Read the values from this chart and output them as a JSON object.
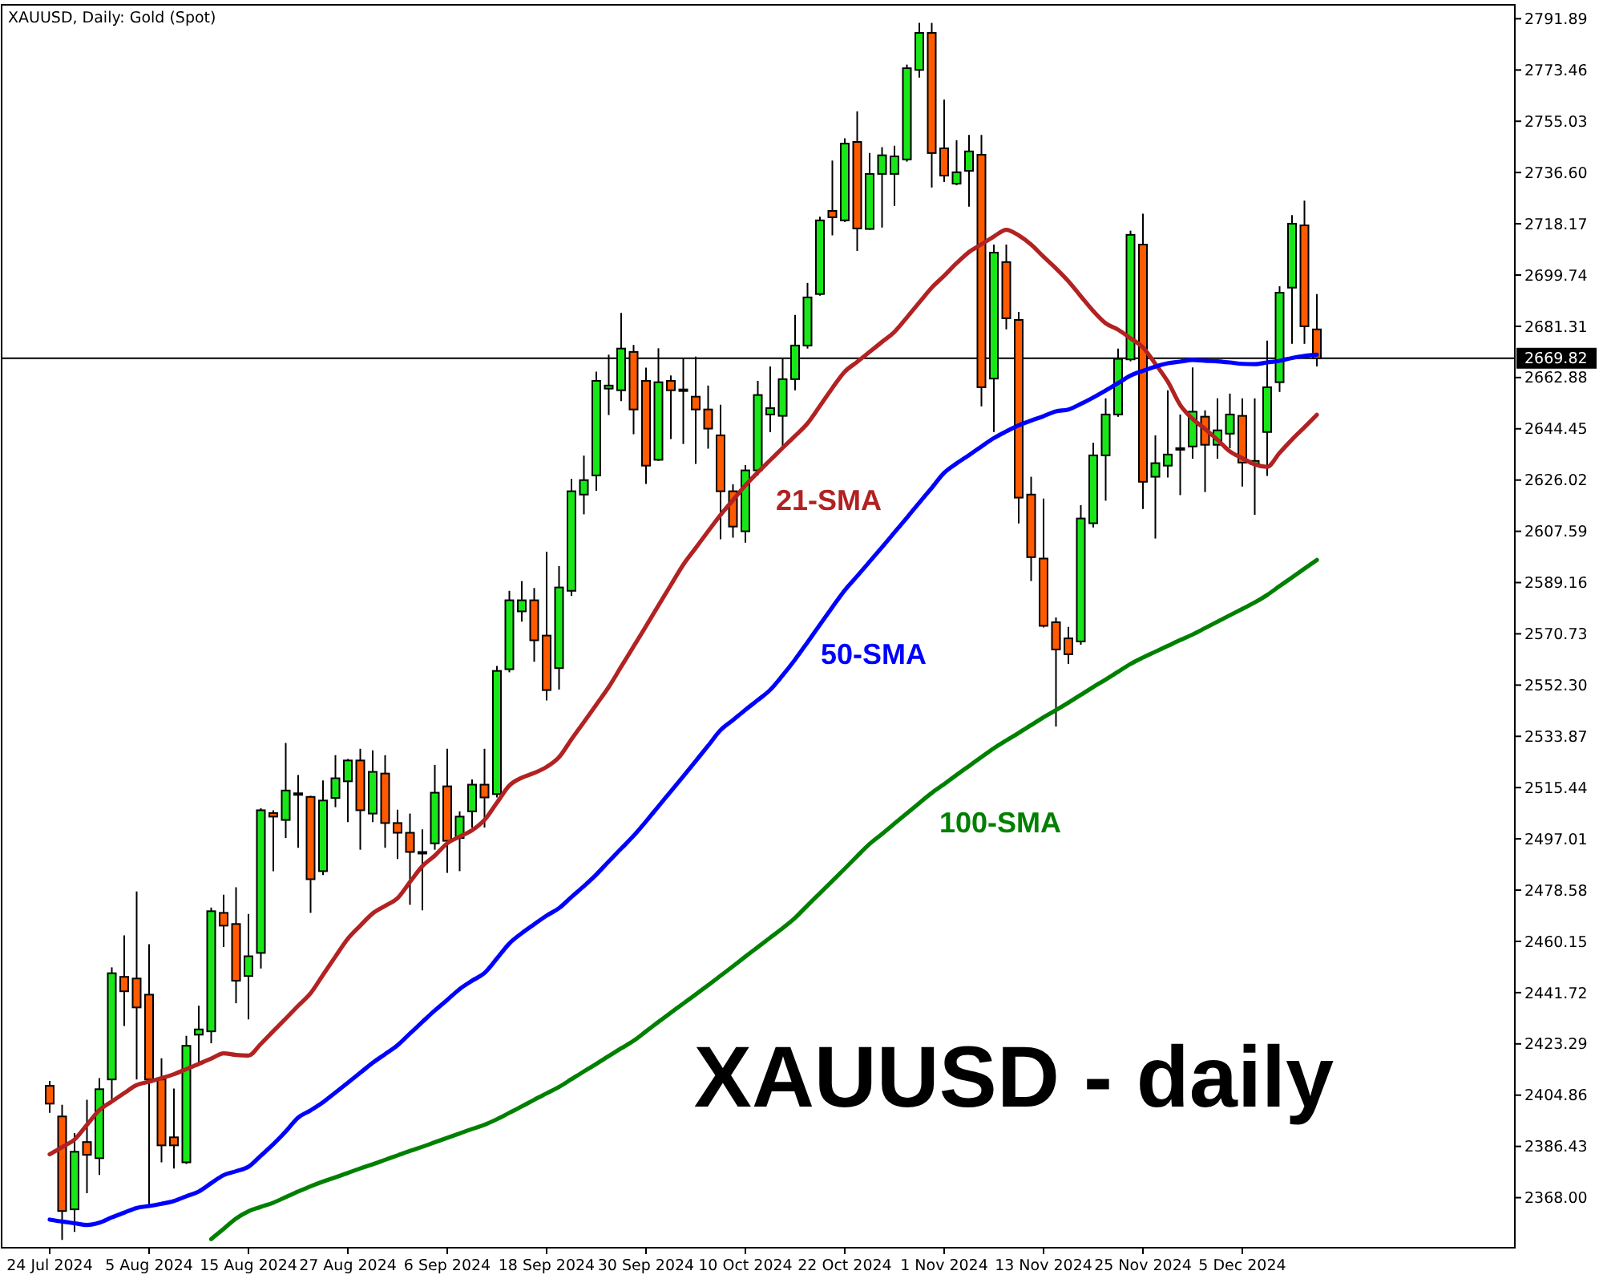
{
  "chart_data": {
    "type": "candlestick",
    "title": "XAUUSD, Daily: Gold (Spot)",
    "annotations": [
      "XAUUSD - daily"
    ],
    "categories": [
      "24 Jul 2024",
      null,
      null,
      null,
      null,
      null,
      null,
      null,
      "5 Aug 2024",
      null,
      null,
      null,
      null,
      null,
      null,
      null,
      "15 Aug 2024",
      null,
      null,
      null,
      null,
      null,
      null,
      null,
      "27 Aug 2024",
      null,
      null,
      null,
      null,
      null,
      null,
      null,
      "6 Sep 2024",
      null,
      null,
      null,
      null,
      null,
      null,
      null,
      "18 Sep 2024",
      null,
      null,
      null,
      null,
      null,
      null,
      null,
      "30 Sep 2024",
      null,
      null,
      null,
      null,
      null,
      null,
      null,
      "10 Oct 2024",
      null,
      null,
      null,
      null,
      null,
      null,
      null,
      "22 Oct 2024",
      null,
      null,
      null,
      null,
      null,
      null,
      null,
      "1 Nov 2024",
      null,
      null,
      null,
      null,
      null,
      null,
      null,
      "13 Nov 2024",
      null,
      null,
      null,
      null,
      null,
      null,
      null,
      "25 Nov 2024",
      null,
      null,
      null,
      null,
      null,
      null,
      null,
      "5 Dec 2024",
      null,
      null,
      null,
      null,
      null,
      null
    ],
    "ohlc": [
      [
        2408.2,
        2410.0,
        2398.5,
        2401.8
      ],
      [
        2397.2,
        2401.4,
        2352.8,
        2363.2
      ],
      [
        2363.8,
        2391.2,
        2355.7,
        2384.5
      ],
      [
        2388.0,
        2403.2,
        2369.6,
        2383.4
      ],
      [
        2382.2,
        2411.0,
        2376.2,
        2407.0
      ],
      [
        2410.5,
        2450.8,
        2403.3,
        2448.7
      ],
      [
        2447.4,
        2462.3,
        2429.7,
        2442.2
      ],
      [
        2446.8,
        2478.1,
        2410.5,
        2436.4
      ],
      [
        2441.0,
        2459.1,
        2365.3,
        2410.5
      ],
      [
        2410.5,
        2418.1,
        2380.7,
        2386.8
      ],
      [
        2389.7,
        2407.2,
        2378.5,
        2386.8
      ],
      [
        2380.7,
        2426.2,
        2380.1,
        2422.6
      ],
      [
        2426.6,
        2437.0,
        2416.6,
        2428.5
      ],
      [
        2427.8,
        2472.3,
        2423.5,
        2471.0
      ],
      [
        2470.4,
        2476.9,
        2458.1,
        2465.8
      ],
      [
        2466.4,
        2479.6,
        2437.9,
        2446.0
      ],
      [
        2447.7,
        2470.0,
        2432.1,
        2454.8
      ],
      [
        2456.0,
        2508.0,
        2450.4,
        2507.3
      ],
      [
        2506.3,
        2507.3,
        2485.4,
        2505.0
      ],
      [
        2503.8,
        2531.5,
        2497.3,
        2514.4
      ],
      [
        2513.4,
        2520.0,
        2493.8,
        2513.4
      ],
      [
        2512.1,
        2512.5,
        2470.4,
        2482.5
      ],
      [
        2485.4,
        2518.0,
        2484.0,
        2510.8
      ],
      [
        2511.7,
        2527.1,
        2508.4,
        2518.8
      ],
      [
        2517.7,
        2525.7,
        2503.0,
        2525.2
      ],
      [
        2525.2,
        2529.4,
        2493.1,
        2507.3
      ],
      [
        2506.1,
        2528.8,
        2503.0,
        2521.1
      ],
      [
        2520.5,
        2527.1,
        2493.8,
        2502.7
      ],
      [
        2502.7,
        2507.5,
        2489.8,
        2499.2
      ],
      [
        2499.2,
        2506.1,
        2473.3,
        2492.3
      ],
      [
        2492.3,
        2500.4,
        2471.3,
        2492.3
      ],
      [
        2495.4,
        2523.6,
        2493.1,
        2513.6
      ],
      [
        2515.9,
        2529.4,
        2484.8,
        2496.3
      ],
      [
        2497.3,
        2506.9,
        2485.4,
        2505.0
      ],
      [
        2506.9,
        2518.4,
        2501.1,
        2516.5
      ],
      [
        2516.5,
        2529.4,
        2501.1,
        2511.9
      ],
      [
        2513.1,
        2559.2,
        2511.9,
        2557.4
      ],
      [
        2558.0,
        2586.2,
        2556.9,
        2582.8
      ],
      [
        2578.8,
        2589.7,
        2575.1,
        2582.8
      ],
      [
        2582.8,
        2587.2,
        2560.7,
        2568.4
      ],
      [
        2570.1,
        2600.3,
        2546.8,
        2550.5
      ],
      [
        2558.4,
        2595.1,
        2550.7,
        2587.4
      ],
      [
        2586.2,
        2626.4,
        2584.3,
        2622.0
      ],
      [
        2620.8,
        2634.8,
        2613.7,
        2626.0
      ],
      [
        2627.7,
        2665.0,
        2622.2,
        2661.7
      ],
      [
        2658.9,
        2671.1,
        2649.4,
        2660.0
      ],
      [
        2658.3,
        2686.1,
        2654.4,
        2673.3
      ],
      [
        2672.1,
        2674.6,
        2642.5,
        2651.4
      ],
      [
        2661.7,
        2666.4,
        2624.6,
        2631.2
      ],
      [
        2633.3,
        2673.4,
        2632.9,
        2661.2
      ],
      [
        2661.7,
        2663.6,
        2640.8,
        2658.3
      ],
      [
        2658.6,
        2669.8,
        2639.0,
        2658.6
      ],
      [
        2656.0,
        2670.4,
        2631.8,
        2651.4
      ],
      [
        2651.4,
        2660.0,
        2637.3,
        2644.5
      ],
      [
        2642.1,
        2653.1,
        2604.7,
        2622.0
      ],
      [
        2622.0,
        2624.5,
        2605.3,
        2609.3
      ],
      [
        2607.6,
        2631.4,
        2603.5,
        2629.5
      ],
      [
        2629.5,
        2661.7,
        2627.7,
        2656.6
      ],
      [
        2649.6,
        2666.9,
        2643.2,
        2651.9
      ],
      [
        2649.1,
        2669.8,
        2638.1,
        2662.3
      ],
      [
        2662.3,
        2685.4,
        2658.3,
        2674.4
      ],
      [
        2674.4,
        2696.9,
        2673.3,
        2691.7
      ],
      [
        2692.9,
        2720.7,
        2692.3,
        2719.4
      ],
      [
        2722.8,
        2740.9,
        2714.0,
        2720.5
      ],
      [
        2719.4,
        2748.9,
        2718.8,
        2747.0
      ],
      [
        2747.6,
        2758.6,
        2708.4,
        2716.5
      ],
      [
        2716.3,
        2743.6,
        2715.9,
        2736.1
      ],
      [
        2736.1,
        2745.7,
        2716.8,
        2742.8
      ],
      [
        2736.1,
        2746.2,
        2724.6,
        2742.4
      ],
      [
        2741.3,
        2775.4,
        2740.5,
        2774.1
      ],
      [
        2773.5,
        2790.4,
        2770.7,
        2786.8
      ],
      [
        2786.8,
        2790.4,
        2731.2,
        2743.6
      ],
      [
        2745.3,
        2762.8,
        2733.2,
        2735.5
      ],
      [
        2732.6,
        2748.2,
        2732.0,
        2736.7
      ],
      [
        2737.2,
        2750.1,
        2724.3,
        2744.2
      ],
      [
        2743.0,
        2750.1,
        2652.5,
        2659.4
      ],
      [
        2662.5,
        2710.7,
        2643.3,
        2707.8
      ],
      [
        2704.4,
        2710.7,
        2680.2,
        2684.2
      ],
      [
        2683.6,
        2686.5,
        2610.4,
        2619.7
      ],
      [
        2620.8,
        2627.2,
        2589.7,
        2598.3
      ],
      [
        2597.8,
        2619.4,
        2573.0,
        2573.6
      ],
      [
        2574.9,
        2576.6,
        2537.4,
        2565.1
      ],
      [
        2569.1,
        2573.2,
        2559.9,
        2563.4
      ],
      [
        2568.0,
        2617.0,
        2566.8,
        2612.2
      ],
      [
        2610.5,
        2639.4,
        2609.0,
        2634.9
      ],
      [
        2634.9,
        2655.4,
        2618.6,
        2649.6
      ],
      [
        2649.6,
        2673.3,
        2648.8,
        2669.6
      ],
      [
        2669.4,
        2715.7,
        2668.7,
        2714.2
      ],
      [
        2710.7,
        2721.8,
        2615.6,
        2625.4
      ],
      [
        2627.2,
        2642.1,
        2605.0,
        2632.1
      ],
      [
        2631.2,
        2658.3,
        2626.9,
        2635.2
      ],
      [
        2637.5,
        2649.6,
        2620.6,
        2637.5
      ],
      [
        2638.1,
        2666.5,
        2633.7,
        2650.6
      ],
      [
        2648.8,
        2651.1,
        2621.7,
        2638.7
      ],
      [
        2638.7,
        2655.4,
        2633.7,
        2643.9
      ],
      [
        2642.7,
        2657.1,
        2637.5,
        2649.6
      ],
      [
        2649.1,
        2655.4,
        2623.7,
        2632.3
      ],
      [
        2631.8,
        2655.4,
        2613.5,
        2632.9
      ],
      [
        2643.3,
        2676.2,
        2627.5,
        2659.4
      ],
      [
        2661.2,
        2695.7,
        2657.7,
        2693.4
      ],
      [
        2695.2,
        2721.3,
        2675.0,
        2718.2
      ],
      [
        2717.6,
        2726.5,
        2675.0,
        2681.3
      ],
      [
        2680.2,
        2692.9,
        2666.9,
        2669.8
      ]
    ],
    "colors": [
      "#ff5a00",
      "#ff5a00",
      "#19e619",
      "#ff5a00",
      "#19e619",
      "#19e619",
      "#ff5a00",
      "#ff5a00",
      "#ff5a00",
      "#ff5a00",
      "#ff5a00",
      "#19e619",
      "#19e619",
      "#19e619",
      "#ff5a00",
      "#ff5a00",
      "#19e619",
      "#19e619",
      "#ff5a00",
      "#19e619",
      "#19e619",
      "#ff5a00",
      "#19e619",
      "#19e619",
      "#19e619",
      "#ff5a00",
      "#19e619",
      "#ff5a00",
      "#ff5a00",
      "#ff5a00",
      "#19e619",
      "#19e619",
      "#ff5a00",
      "#19e619",
      "#19e619",
      "#ff5a00",
      "#19e619",
      "#19e619",
      "#19e619",
      "#ff5a00",
      "#ff5a00",
      "#19e619",
      "#19e619",
      "#19e619",
      "#19e619",
      "#19e619",
      "#19e619",
      "#ff5a00",
      "#ff5a00",
      "#19e619",
      "#ff5a00",
      "#19e619",
      "#ff5a00",
      "#ff5a00",
      "#ff5a00",
      "#ff5a00",
      "#19e619",
      "#19e619",
      "#19e619",
      "#19e619",
      "#19e619",
      "#19e619",
      "#19e619",
      "#ff5a00",
      "#19e619",
      "#ff5a00",
      "#19e619",
      "#19e619",
      "#19e619",
      "#19e619",
      "#19e619",
      "#ff5a00",
      "#ff5a00",
      "#19e619",
      "#19e619",
      "#ff5a00",
      "#19e619",
      "#ff5a00",
      "#ff5a00",
      "#ff5a00",
      "#ff5a00",
      "#ff5a00",
      "#ff5a00",
      "#19e619",
      "#19e619",
      "#19e619",
      "#19e619",
      "#19e619",
      "#ff5a00",
      "#19e619",
      "#19e619",
      "#19e619",
      "#19e619",
      "#ff5a00",
      "#19e619",
      "#19e619",
      "#ff5a00",
      "#19e619",
      "#19e619",
      "#19e619",
      "#19e619",
      "#ff5a00",
      "#ff5a00"
    ],
    "series": [
      {
        "name": "21-SMA",
        "type": "line",
        "color": "#b22222",
        "values": [
          2383.6,
          2386.2,
          2388.9,
          2394.2,
          2399.5,
          2402.6,
          2405.6,
          2408.5,
          2409.7,
          2411.0,
          2412.4,
          2414.2,
          2416.1,
          2418.0,
          2419.9,
          2419.3,
          2419.1,
          2423.3,
          2427.9,
          2432.4,
          2437.0,
          2441.5,
          2448.1,
          2454.7,
          2461.1,
          2465.8,
          2470.2,
          2472.9,
          2475.7,
          2481.5,
          2487.2,
          2491.0,
          2495.4,
          2497.8,
          2500.1,
          2503.8,
          2510.0,
          2516.2,
          2519.0,
          2520.7,
          2522.9,
          2526.4,
          2532.8,
          2539.0,
          2545.3,
          2551.6,
          2558.9,
          2566.2,
          2573.5,
          2580.9,
          2588.3,
          2595.6,
          2601.6,
          2607.6,
          2613.5,
          2618.8,
          2624.1,
          2628.8,
          2633.2,
          2637.6,
          2641.9,
          2646.4,
          2652.7,
          2659.1,
          2665.0,
          2668.5,
          2672.1,
          2675.7,
          2679.3,
          2684.5,
          2689.9,
          2695.2,
          2699.5,
          2704.0,
          2708.0,
          2710.8,
          2713.6,
          2716.0,
          2714.0,
          2710.7,
          2706.3,
          2702.1,
          2697.5,
          2692.1,
          2686.8,
          2682.4,
          2680.1,
          2677.0,
          2673.7,
          2667.8,
          2661.4,
          2653.0,
          2648.0,
          2644.4,
          2640.5,
          2636.3,
          2633.9,
          2631.7,
          2630.8,
          2635.8,
          2640.6,
          2645.0,
          2649.5
        ]
      },
      {
        "name": "50-SMA",
        "type": "line",
        "color": "#0000ff",
        "values": [
          2360.1,
          2359.4,
          2358.8,
          2358.2,
          2359.0,
          2360.9,
          2362.6,
          2364.3,
          2365.0,
          2365.8,
          2366.8,
          2368.5,
          2370.2,
          2373.2,
          2376.1,
          2377.5,
          2379.1,
          2383.1,
          2387.2,
          2391.8,
          2396.8,
          2399.4,
          2402.3,
          2405.8,
          2409.3,
          2412.9,
          2416.5,
          2419.6,
          2422.8,
          2427.0,
          2431.2,
          2435.3,
          2439.1,
          2443.0,
          2446.0,
          2448.8,
          2454.0,
          2459.4,
          2463.1,
          2466.3,
          2469.4,
          2472.1,
          2476.1,
          2480.0,
          2484.2,
          2488.9,
          2493.5,
          2498.1,
          2503.3,
          2508.7,
          2514.1,
          2519.5,
          2525.0,
          2530.5,
          2536.1,
          2539.7,
          2543.4,
          2546.9,
          2550.6,
          2555.8,
          2561.5,
          2567.7,
          2574.0,
          2580.3,
          2586.4,
          2591.5,
          2596.7,
          2601.9,
          2607.2,
          2612.5,
          2617.9,
          2623.2,
          2628.6,
          2632.0,
          2635.0,
          2638.1,
          2641.1,
          2643.5,
          2645.7,
          2647.4,
          2649.0,
          2650.7,
          2651.4,
          2653.4,
          2655.7,
          2658.2,
          2660.9,
          2663.6,
          2665.3,
          2666.8,
          2668.0,
          2668.6,
          2669.2,
          2668.9,
          2668.7,
          2668.3,
          2667.8,
          2667.7,
          2668.3,
          2668.9,
          2669.9,
          2670.7,
          2671.1
        ]
      },
      {
        "name": "100-SMA",
        "type": "line",
        "color": "#008000",
        "values": [
          null,
          null,
          null,
          null,
          null,
          null,
          null,
          null,
          null,
          null,
          null,
          null,
          null,
          2353.1,
          2356.8,
          2360.5,
          2363.1,
          2364.7,
          2366.2,
          2368.2,
          2370.2,
          2372.1,
          2373.8,
          2375.3,
          2376.9,
          2378.5,
          2380.0,
          2381.6,
          2383.2,
          2384.8,
          2386.3,
          2387.9,
          2389.5,
          2391.1,
          2392.7,
          2394.2,
          2396.2,
          2398.5,
          2400.8,
          2403.2,
          2405.5,
          2407.8,
          2410.6,
          2413.4,
          2416.1,
          2418.9,
          2421.7,
          2424.4,
          2427.8,
          2431.2,
          2434.5,
          2437.8,
          2441.1,
          2444.4,
          2447.8,
          2451.2,
          2454.7,
          2458.1,
          2461.5,
          2464.9,
          2468.6,
          2473.1,
          2477.5,
          2481.9,
          2486.3,
          2490.8,
          2495.2,
          2498.8,
          2502.5,
          2506.2,
          2509.9,
          2513.5,
          2516.7,
          2520.0,
          2523.2,
          2526.4,
          2529.6,
          2532.4,
          2535.1,
          2537.9,
          2540.7,
          2543.3,
          2546.0,
          2548.8,
          2551.6,
          2554.3,
          2557.1,
          2559.9,
          2562.2,
          2564.3,
          2566.4,
          2568.5,
          2570.5,
          2572.8,
          2575.1,
          2577.4,
          2579.7,
          2582.0,
          2584.7,
          2587.9,
          2591.0,
          2594.2,
          2597.3
        ]
      }
    ],
    "ylim": [
      2350.0,
      2796.9
    ],
    "yticks": [
      {
        "value": 2368,
        "label": "2368.00"
      },
      2386.43,
      2404.86,
      2423.29,
      2441.72,
      2460.15,
      2478.58,
      2497.01,
      2515.44,
      2533.87,
      {
        "value": 2552.3,
        "label": "2552.30"
      },
      2570.73,
      2589.16,
      2607.59,
      2626.02,
      2644.45,
      2662.88,
      2681.31,
      2699.74,
      2718.17,
      {
        "value": 2736.6,
        "label": "2736.60"
      },
      2755.03,
      2773.46,
      2791.89
    ],
    "ref_lines": [
      {
        "axis": "y",
        "value": 2669.82,
        "label": "2669.82",
        "color": "#000000"
      }
    ],
    "grid": false
  }
}
